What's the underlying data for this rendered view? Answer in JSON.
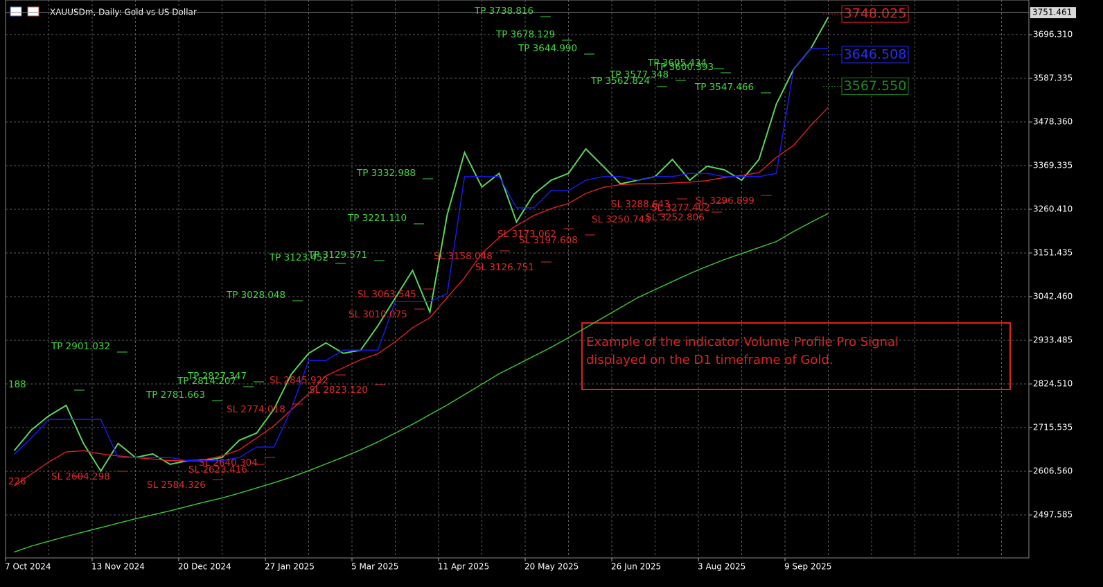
{
  "chart_data": {
    "type": "line",
    "title": "XAUUSDm, Daily:  Gold vs US Dollar",
    "categories": [
      "7 Oct 2024",
      null,
      null,
      null,
      null,
      "13 Nov 2024",
      null,
      null,
      null,
      null,
      "20 Dec 2024",
      null,
      null,
      null,
      null,
      "27 Jan 2025",
      null,
      null,
      null,
      null,
      "5 Mar 2025",
      null,
      null,
      null,
      null,
      "11 Apr 2025",
      null,
      null,
      null,
      null,
      "20 May 2025",
      null,
      null,
      null,
      null,
      "26 Jun 2025",
      null,
      null,
      null,
      null,
      "3 Aug 2025",
      null,
      null,
      null,
      null,
      "9 Sep 2025",
      null,
      null
    ],
    "series": [
      {
        "color": "#5ad65a",
        "values": [
          2658,
          2710,
          2745,
          2771,
          2676,
          2607,
          2676,
          2641,
          2650,
          2624,
          2633,
          2633,
          2641,
          2684,
          2702,
          2762,
          2849,
          2901,
          2927,
          2901,
          2909,
          2970,
          3039,
          3108,
          3004,
          3247,
          3402,
          3316,
          3350,
          3229,
          3298,
          3333,
          3350,
          3411,
          3368,
          3324,
          3333,
          3342,
          3385,
          3333,
          3368,
          3359,
          3333,
          3385,
          3523,
          3610,
          3662,
          3740
        ]
      },
      {
        "color": "#e02020",
        "values": [
          2570,
          2600,
          2630,
          2655,
          2658,
          2650,
          2645,
          2641,
          2637,
          2633,
          2633,
          2636,
          2645,
          2660,
          2690,
          2720,
          2760,
          2800,
          2845,
          2865,
          2885,
          2900,
          2930,
          2965,
          2990,
          3040,
          3090,
          3150,
          3190,
          3220,
          3245,
          3262,
          3275,
          3300,
          3315,
          3322,
          3324,
          3324,
          3326,
          3328,
          3332,
          3340,
          3345,
          3352,
          3390,
          3420,
          3470,
          3515
        ]
      },
      {
        "color": "#1a1aff",
        "values": [
          2649,
          2690,
          2736,
          2736,
          2736,
          2736,
          2641,
          2641,
          2641,
          2641,
          2633,
          2633,
          2633,
          2641,
          2667,
          2667,
          2762,
          2883,
          2883,
          2909,
          2909,
          2909,
          3030,
          3030,
          3030,
          3050,
          3342,
          3342,
          3342,
          3264,
          3264,
          3307,
          3307,
          3333,
          3342,
          3342,
          3333,
          3342,
          3342,
          3350,
          3350,
          3342,
          3342,
          3342,
          3350,
          3610,
          3662,
          3662
        ]
      },
      {
        "color": "#3cc83c",
        "values": [
          2405,
          2420,
          2432,
          2444,
          2455,
          2466,
          2477,
          2488,
          2498,
          2508,
          2519,
          2530,
          2540,
          2552,
          2565,
          2578,
          2592,
          2608,
          2625,
          2642,
          2660,
          2680,
          2702,
          2724,
          2748,
          2772,
          2798,
          2824,
          2850,
          2872,
          2894,
          2916,
          2940,
          2965,
          2990,
          3015,
          3040,
          3060,
          3080,
          3100,
          3118,
          3135,
          3150,
          3165,
          3180,
          3205,
          3228,
          3250
        ]
      }
    ],
    "ylim": [
      2390.4,
      3782.8
    ],
    "yticks": [
      {
        "value": 3696.31,
        "label": "3696.310"
      },
      3587.335,
      {
        "value": 3478.36,
        "label": "3478.360"
      },
      3369.335,
      {
        "value": 3260.41,
        "label": "3260.410"
      },
      3151.435,
      {
        "value": 3042.46,
        "label": "3042.460"
      },
      2933.485,
      {
        "value": 2824.51,
        "label": "2824.510"
      },
      2715.535,
      {
        "value": 2606.56,
        "label": "2606.560"
      },
      2497.585
    ],
    "grid": true,
    "last_price": 3751.461,
    "price_labels": [
      {
        "value": 3748.025,
        "color": "#e02020"
      },
      {
        "value": 3646.508,
        "color": "#2a2aff"
      },
      {
        "value": 3567.55,
        "label": "3567.550",
        "color": "#1e8a1e"
      }
    ],
    "tp_color": "#3ed83e",
    "sl_color": "#e02828",
    "tp_labels": [
      "TP 3738.816",
      "TP 3678.129",
      "TP 3644.990",
      "TP 3605.434",
      "TP 3600.393",
      "TP 3577.348",
      "TP 3562.824",
      "TP 3547.466",
      "TP 3332.988",
      "TP 3221.110",
      "TP 3129.571",
      "TP 3123.452",
      "TP 3028.048",
      "TP 2901.032",
      "TP 2827.347",
      "TP 2814.207",
      "TP 2781.663",
      "188"
    ],
    "sl_labels": [
      "226",
      "SL 2604.298",
      "SL 2584.326",
      "SL 2640.304",
      "SL 2623.416",
      "SL 2774.018",
      "SL 2845.922",
      "SL 2823.120",
      "SL 3010.075",
      "SL 3063.545",
      "SL 3158.048",
      "SL 3126.751",
      "SL 3173.062",
      "SL 3197.608",
      "SL 3250.743",
      "SL 3252.806",
      "SL 3288.643",
      "SL 3277.402",
      "SL 3296.899"
    ],
    "note": [
      "Example of the indicator Volume Profile Pro Signal",
      "displayed on the D1 timeframe of Gold."
    ]
  }
}
